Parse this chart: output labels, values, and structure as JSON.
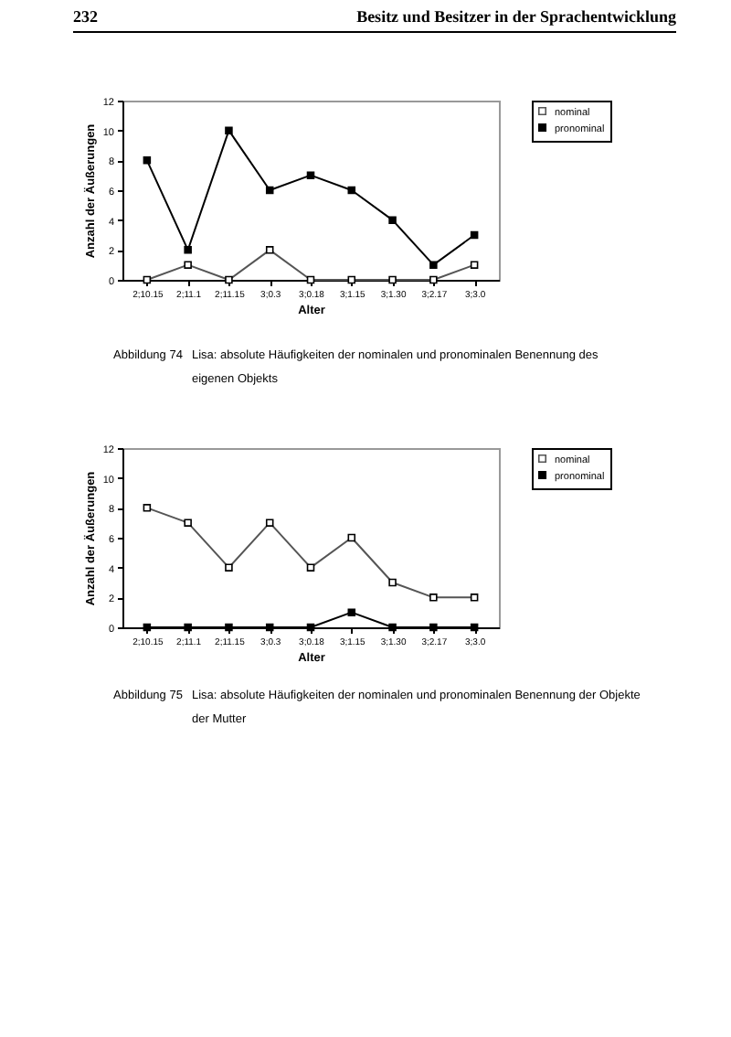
{
  "chart_data": [
    {
      "type": "line",
      "xlabel": "Alter",
      "ylabel": "Anzahl der Äußerungen",
      "annotations": [
        "232",
        "Besitz und Besitzer in der Sprachentwicklung",
        "Abbildung 74",
        "Lisa: absolute Häufigkeiten der nominalen und pronominalen Benennung des eigenen Objekts"
      ],
      "categories": [
        "2;10.15",
        "2;11.1",
        "2;11.15",
        "3;0.3",
        "3;0.18",
        "3;1.15",
        "3;1.30",
        "3;2.17",
        "3;3.0"
      ],
      "series": [
        {
          "name": "nominal",
          "color": "#555555",
          "values": [
            0,
            1,
            0,
            2,
            0,
            0,
            0,
            0,
            1
          ]
        },
        {
          "name": "pronominal",
          "color": "#000000",
          "values": [
            8,
            2,
            10,
            6,
            7,
            6,
            4,
            1,
            3
          ]
        }
      ],
      "ylim": [
        0,
        12
      ],
      "yticks": [
        0,
        2,
        4,
        6,
        8,
        10,
        12
      ],
      "legend": "right",
      "marker": "square"
    },
    {
      "type": "line",
      "xlabel": "Alter",
      "ylabel": "Anzahl der Äußerungen",
      "annotations": [
        "Abbildung 75",
        "Lisa: absolute Häufigkeiten der nominalen und pronominalen Benennung der Objekte der Mutter"
      ],
      "categories": [
        "2;10.15",
        "2;11.1",
        "2;11.15",
        "3;0.3",
        "3;0.18",
        "3;1.15",
        "3;1.30",
        "3;2.17",
        "3;3.0"
      ],
      "series": [
        {
          "name": "nominal",
          "color": "#555555",
          "values": [
            8,
            7,
            4,
            7,
            4,
            6,
            3,
            2,
            2
          ]
        },
        {
          "name": "pronominal",
          "color": "#000000",
          "values": [
            0,
            0,
            0,
            0,
            0,
            1,
            0,
            0,
            0
          ]
        }
      ],
      "ylim": [
        0,
        12
      ],
      "yticks": [
        0,
        2,
        4,
        6,
        8,
        10,
        12
      ],
      "legend": "right",
      "marker": "square"
    }
  ]
}
